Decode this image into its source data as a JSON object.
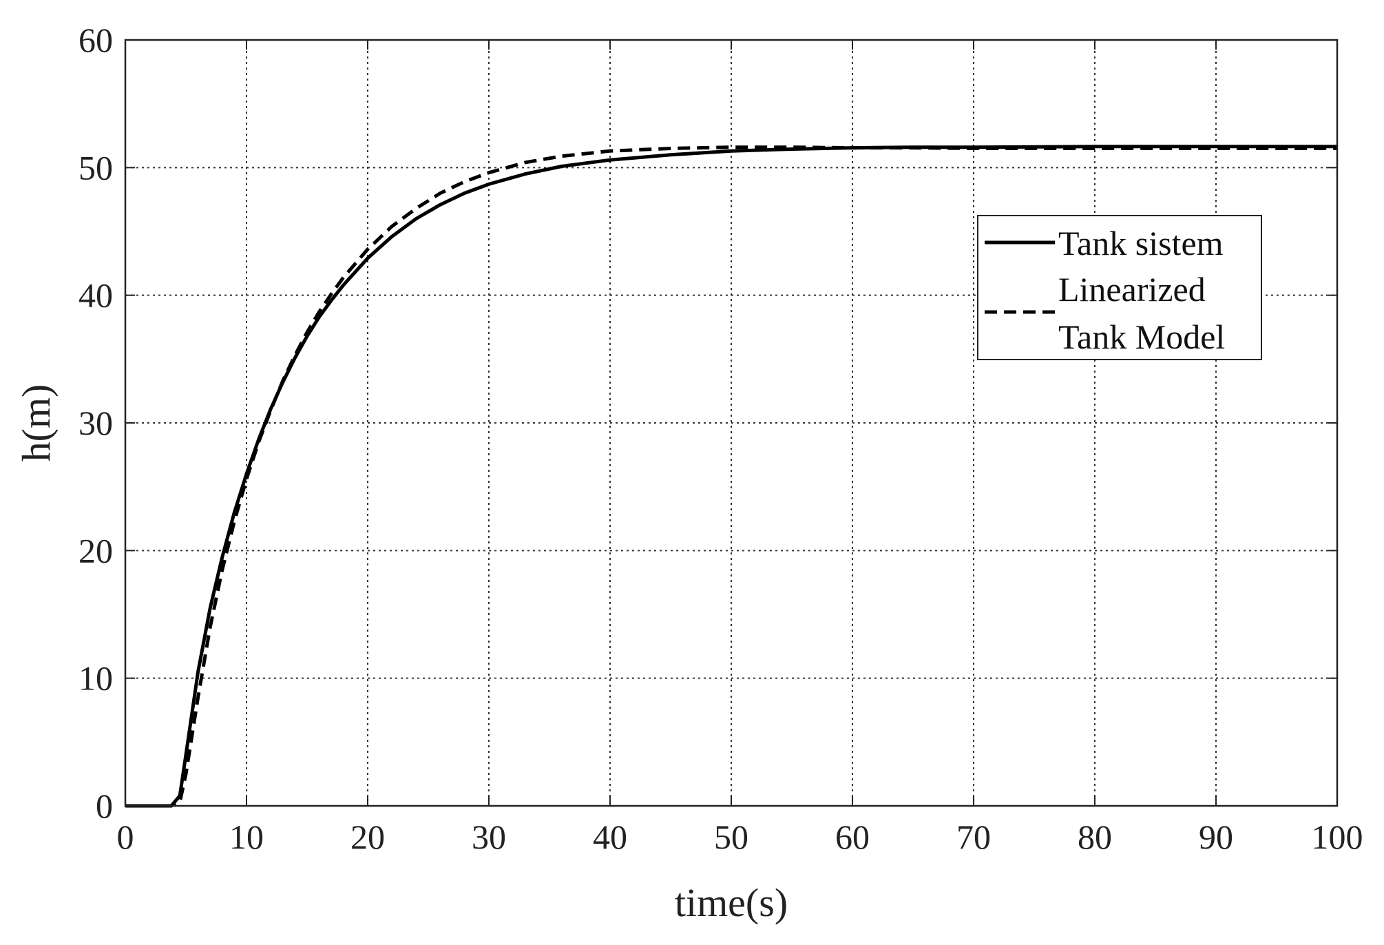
{
  "chart_data": {
    "type": "line",
    "title": "",
    "xlabel": "time(s)",
    "ylabel": "h(m)",
    "xlim": [
      0,
      100
    ],
    "ylim": [
      0,
      60
    ],
    "xticks": [
      0,
      10,
      20,
      30,
      40,
      50,
      60,
      70,
      80,
      90,
      100
    ],
    "yticks": [
      0,
      10,
      20,
      30,
      40,
      50,
      60
    ],
    "xtick_labels": [
      "0",
      "10",
      "20",
      "30",
      "40",
      "50",
      "60",
      "70",
      "80",
      "90",
      "100"
    ],
    "ytick_labels": [
      "0",
      "10",
      "20",
      "30",
      "40",
      "50",
      "60"
    ],
    "grid": true,
    "legend_position": "upper-right",
    "series": [
      {
        "name": "Tank sistem",
        "style": "solid",
        "color": "#000000",
        "x": [
          0,
          2,
          3.8,
          4.5,
          5,
          6,
          7,
          8,
          9,
          10,
          11,
          12,
          13,
          14,
          15,
          16,
          17,
          18,
          20,
          22,
          24,
          26,
          28,
          30,
          33,
          36,
          40,
          45,
          50,
          55,
          60,
          65,
          70,
          80,
          90,
          100
        ],
        "y": [
          0,
          0,
          0,
          0.8,
          4,
          10.5,
          15.5,
          19.5,
          23,
          26,
          28.7,
          31.1,
          33.2,
          35.1,
          36.8,
          38.3,
          39.6,
          40.8,
          42.9,
          44.6,
          46.0,
          47.1,
          48.0,
          48.7,
          49.5,
          50.1,
          50.6,
          51.0,
          51.3,
          51.45,
          51.55,
          51.6,
          51.6,
          51.65,
          51.65,
          51.65
        ]
      },
      {
        "name": "Linearized Tank Model",
        "style": "dashed",
        "color": "#000000",
        "x": [
          0,
          2,
          3.8,
          4.5,
          5,
          6,
          7,
          8,
          9,
          10,
          11,
          12,
          13,
          14,
          15,
          16,
          17,
          18,
          20,
          22,
          24,
          26,
          28,
          30,
          33,
          36,
          40,
          45,
          50,
          55,
          60,
          65,
          70,
          80,
          90,
          100
        ],
        "y": [
          0,
          0,
          0,
          0.3,
          2.5,
          8.5,
          14,
          18.5,
          22.3,
          25.6,
          28.5,
          31.0,
          33.3,
          35.3,
          37.1,
          38.7,
          40.1,
          41.4,
          43.6,
          45.4,
          46.8,
          48.0,
          48.9,
          49.6,
          50.4,
          50.9,
          51.3,
          51.5,
          51.6,
          51.6,
          51.55,
          51.55,
          51.5,
          51.5,
          51.5,
          51.5
        ]
      }
    ],
    "legend": {
      "entries": [
        {
          "lines": [
            "Tank sistem"
          ],
          "style": "solid"
        },
        {
          "lines": [
            "Linearized",
            "Tank Model"
          ],
          "style": "dashed"
        }
      ]
    }
  }
}
